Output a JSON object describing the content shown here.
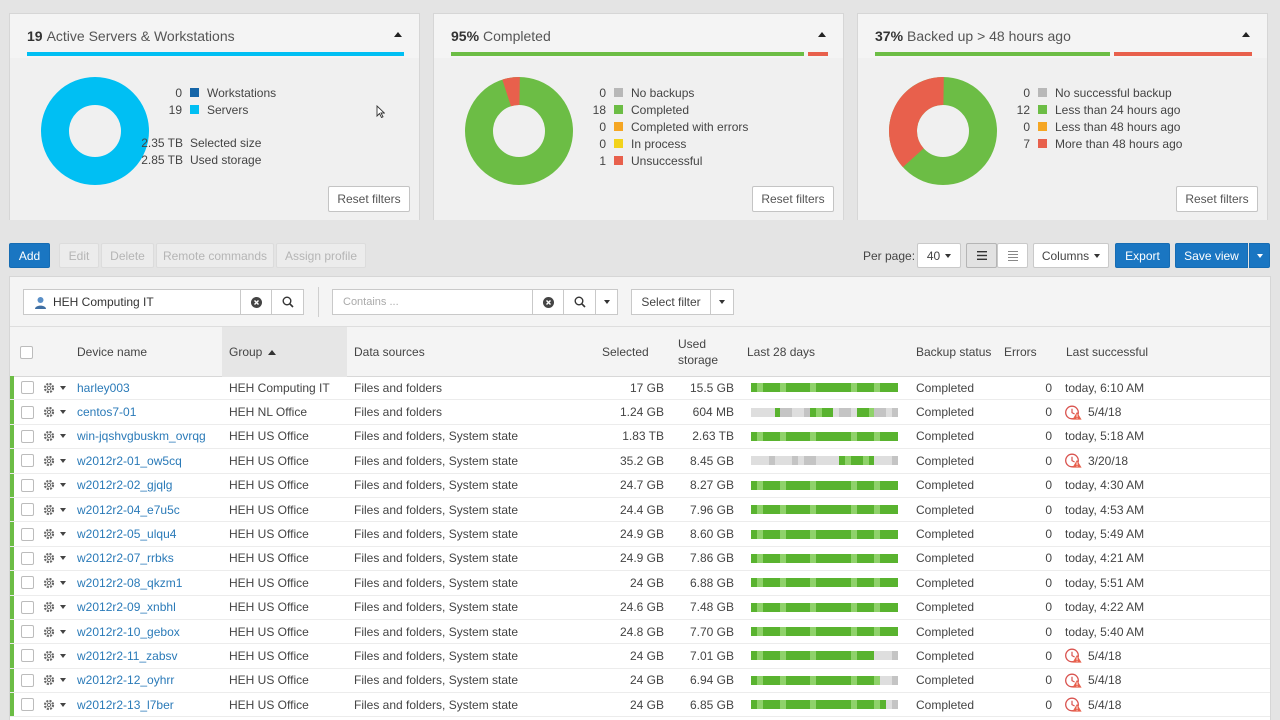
{
  "colors": {
    "accent": "#1a76c2",
    "servers": "#00bff3",
    "workstations": "#1565a8",
    "completed": "#6cbd45",
    "no_backup": "#b8b8b8",
    "errors": "#f5a623",
    "in_process": "#f2d31b",
    "unsuccessful": "#e8604c"
  },
  "cards": {
    "devices": {
      "count": "19",
      "title": "Active Servers & Workstations",
      "legend": [
        {
          "value": "0",
          "label": "Workstations",
          "color": "#1565a8"
        },
        {
          "value": "19",
          "label": "Servers",
          "color": "#00bff3"
        }
      ],
      "sizes": [
        {
          "value": "2.35 TB",
          "label": "Selected size"
        },
        {
          "value": "2.85 TB",
          "label": "Used storage"
        }
      ],
      "reset_label": "Reset filters"
    },
    "completed": {
      "percent": "95%",
      "title": "Completed",
      "legend": [
        {
          "value": "0",
          "label": "No backups",
          "color": "#b8b8b8"
        },
        {
          "value": "18",
          "label": "Completed",
          "color": "#6cbd45"
        },
        {
          "value": "0",
          "label": "Completed with errors",
          "color": "#f5a623"
        },
        {
          "value": "0",
          "label": "In process",
          "color": "#f2d31b"
        },
        {
          "value": "1",
          "label": "Unsuccessful",
          "color": "#e8604c"
        }
      ],
      "reset_label": "Reset filters"
    },
    "backedup": {
      "percent": "37%",
      "title": "Backed up > 48 hours ago",
      "legend": [
        {
          "value": "0",
          "label": "No successful backup",
          "color": "#b8b8b8"
        },
        {
          "value": "12",
          "label": "Less than 24 hours ago",
          "color": "#6cbd45"
        },
        {
          "value": "0",
          "label": "Less than 48 hours ago",
          "color": "#f5a623"
        },
        {
          "value": "7",
          "label": "More than 48 hours ago",
          "color": "#e8604c"
        }
      ],
      "reset_label": "Reset filters"
    }
  },
  "toolbar": {
    "add": "Add",
    "edit": "Edit",
    "delete": "Delete",
    "remote_commands": "Remote commands",
    "assign_profile": "Assign profile",
    "per_page_label": "Per page:",
    "per_page_value": "40",
    "columns": "Columns",
    "export": "Export",
    "save_view": "Save view"
  },
  "filters": {
    "group_value": "HEH Computing IT",
    "contains_placeholder": "Contains ...",
    "select_filter": "Select filter"
  },
  "table": {
    "headers": {
      "device_name": "Device name",
      "group": "Group",
      "data_sources": "Data sources",
      "selected": "Selected",
      "used_storage_1": "Used",
      "used_storage_2": "storage",
      "last28": "Last 28 days",
      "backup_status": "Backup status",
      "errors": "Errors",
      "last_successful": "Last successful"
    },
    "rows": [
      {
        "device": "harley003",
        "group": "HEH Computing IT",
        "sources": "Files and folders",
        "selected": "17 GB",
        "used": "15.5 GB",
        "history": "GgGGGgGGGGgGGGGGGgGGGgGGG",
        "status": "Completed",
        "errors": "0",
        "last": "today, 6:10 AM",
        "warn": false
      },
      {
        "device": "centos7-01",
        "group": "HEH NL Office",
        "sources": "Files and folders",
        "selected": "1.24 GB",
        "used": "604 MB",
        "history": "nnnnGNNnnNGgGGnNNnGGgNNnN",
        "status": "Completed",
        "errors": "0",
        "last": "5/4/18",
        "warn": true
      },
      {
        "device": "win-jqshvgbuskm_ovrqg",
        "group": "HEH US Office",
        "sources": "Files and folders, System state",
        "selected": "1.83 TB",
        "used": "2.63 TB",
        "history": "GgGGGgGGGGgGGGGGGgGGGgGGG",
        "status": "Completed",
        "errors": "0",
        "last": "today, 5:18 AM",
        "warn": false
      },
      {
        "device": "w2012r2-01_ow5cq",
        "group": "HEH US Office",
        "sources": "Files and folders, System state",
        "selected": "35.2 GB",
        "used": "8.45 GB",
        "history": "nnnNnnnNnNNnnnnGgGGgGnnnN",
        "status": "Completed",
        "errors": "0",
        "last": "3/20/18",
        "warn": true
      },
      {
        "device": "w2012r2-02_gjqlg",
        "group": "HEH US Office",
        "sources": "Files and folders, System state",
        "selected": "24.7 GB",
        "used": "8.27 GB",
        "history": "GgGGGgGGGGgGGGGGGgGGGgGGG",
        "status": "Completed",
        "errors": "0",
        "last": "today, 4:30 AM",
        "warn": false
      },
      {
        "device": "w2012r2-04_e7u5c",
        "group": "HEH US Office",
        "sources": "Files and folders, System state",
        "selected": "24.4 GB",
        "used": "7.96 GB",
        "history": "GgGGGgGGGGgGGGGGGgGGGgGGG",
        "status": "Completed",
        "errors": "0",
        "last": "today, 4:53 AM",
        "warn": false
      },
      {
        "device": "w2012r2-05_ulqu4",
        "group": "HEH US Office",
        "sources": "Files and folders, System state",
        "selected": "24.9 GB",
        "used": "8.60 GB",
        "history": "GgGGGgGGGGgGGGGGGgGGGgGGG",
        "status": "Completed",
        "errors": "0",
        "last": "today, 5:49 AM",
        "warn": false
      },
      {
        "device": "w2012r2-07_rrbks",
        "group": "HEH US Office",
        "sources": "Files and folders, System state",
        "selected": "24.9 GB",
        "used": "7.86 GB",
        "history": "GgGGGgGGGGgGGGGGGgGGGgGGG",
        "status": "Completed",
        "errors": "0",
        "last": "today, 4:21 AM",
        "warn": false
      },
      {
        "device": "w2012r2-08_qkzm1",
        "group": "HEH US Office",
        "sources": "Files and folders, System state",
        "selected": "24 GB",
        "used": "6.88 GB",
        "history": "GgGGGgGGGGgGGGGGGgGGGgGGG",
        "status": "Completed",
        "errors": "0",
        "last": "today, 5:51 AM",
        "warn": false
      },
      {
        "device": "w2012r2-09_xnbhl",
        "group": "HEH US Office",
        "sources": "Files and folders, System state",
        "selected": "24.6 GB",
        "used": "7.48 GB",
        "history": "GgGGGgGGGGgGGGGGGgGGGgGGG",
        "status": "Completed",
        "errors": "0",
        "last": "today, 4:22 AM",
        "warn": false
      },
      {
        "device": "w2012r2-10_gebox",
        "group": "HEH US Office",
        "sources": "Files and folders, System state",
        "selected": "24.8 GB",
        "used": "7.70 GB",
        "history": "GgGGGgGGGGgGGGGGGgGGGgGGG",
        "status": "Completed",
        "errors": "0",
        "last": "today, 5:40 AM",
        "warn": false
      },
      {
        "device": "w2012r2-11_zabsv",
        "group": "HEH US Office",
        "sources": "Files and folders, System state",
        "selected": "24 GB",
        "used": "7.01 GB",
        "history": "GgGGGgGGGGgGGGGGGgGGGnnnN",
        "status": "Completed",
        "errors": "0",
        "last": "5/4/18",
        "warn": true
      },
      {
        "device": "w2012r2-12_oyhrr",
        "group": "HEH US Office",
        "sources": "Files and folders, System state",
        "selected": "24 GB",
        "used": "6.94 GB",
        "history": "GgGGGgGGGGgGGGGGGgGGGgnnN",
        "status": "Completed",
        "errors": "0",
        "last": "5/4/18",
        "warn": true
      },
      {
        "device": "w2012r2-13_l7ber",
        "group": "HEH US Office",
        "sources": "Files and folders, System state",
        "selected": "24 GB",
        "used": "6.85 GB",
        "history": "GgGGGgGGGGgGGGGGGgGGGgGnN",
        "status": "Completed",
        "errors": "0",
        "last": "5/4/18",
        "warn": true
      }
    ]
  }
}
